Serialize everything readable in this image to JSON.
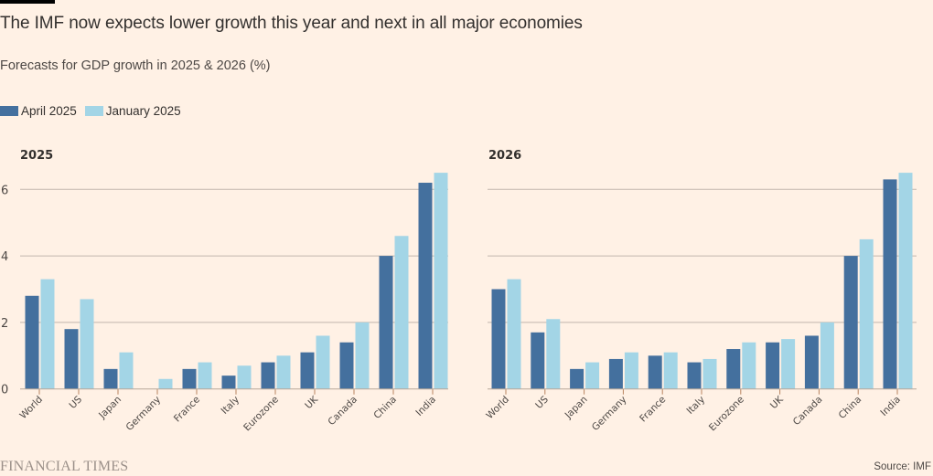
{
  "header": {
    "title": "The IMF now expects lower growth this year and next in all major economies",
    "subtitle": "Forecasts for GDP growth in 2025 & 2026 (%)"
  },
  "legend": [
    {
      "label": "April 2025",
      "color": "#44709e"
    },
    {
      "label": "January 2025",
      "color": "#a3d5e6"
    }
  ],
  "footer": {
    "brand": "FINANCIAL TIMES",
    "source": "Source: IMF"
  },
  "chart_data": [
    {
      "type": "bar",
      "title": "2025",
      "xlabel": "",
      "ylabel": "",
      "ylim": [
        0,
        6.6
      ],
      "yticks": [
        0,
        2,
        4,
        6
      ],
      "grid": true,
      "legend_position": "top-left",
      "categories": [
        "World",
        "US",
        "Japan",
        "Germany",
        "France",
        "Italy",
        "Eurozone",
        "UK",
        "Canada",
        "China",
        "India"
      ],
      "series": [
        {
          "name": "April 2025",
          "values": [
            2.8,
            1.8,
            0.6,
            0.0,
            0.6,
            0.4,
            0.8,
            1.1,
            1.4,
            4.0,
            6.2
          ]
        },
        {
          "name": "January 2025",
          "values": [
            3.3,
            2.7,
            1.1,
            0.3,
            0.8,
            0.7,
            1.0,
            1.6,
            2.0,
            4.6,
            6.5
          ]
        }
      ]
    },
    {
      "type": "bar",
      "title": "2026",
      "xlabel": "",
      "ylabel": "",
      "ylim": [
        0,
        6.6
      ],
      "yticks": [
        0,
        2,
        4,
        6
      ],
      "grid": true,
      "legend_position": "top-left",
      "categories": [
        "World",
        "US",
        "Japan",
        "Germany",
        "France",
        "Italy",
        "Eurozone",
        "UK",
        "Canada",
        "China",
        "India"
      ],
      "series": [
        {
          "name": "April 2025",
          "values": [
            3.0,
            1.7,
            0.6,
            0.9,
            1.0,
            0.8,
            1.2,
            1.4,
            1.6,
            4.0,
            6.3
          ]
        },
        {
          "name": "January 2025",
          "values": [
            3.3,
            2.1,
            0.8,
            1.1,
            1.1,
            0.9,
            1.4,
            1.5,
            2.0,
            4.5,
            6.5
          ]
        }
      ]
    }
  ]
}
